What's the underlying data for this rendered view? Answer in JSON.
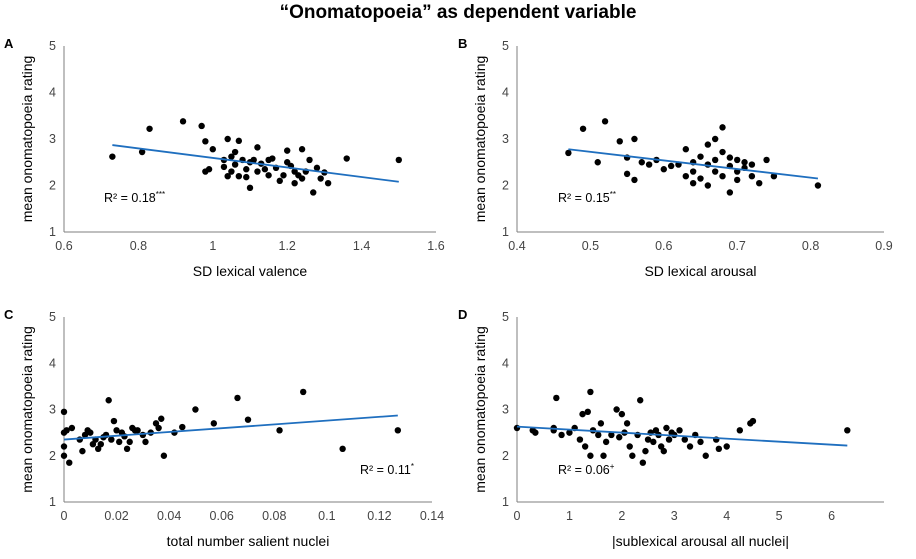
{
  "figure": {
    "title": "“Onomatopoeia” as dependent variable"
  },
  "colors": {
    "points": "#000000",
    "trendline": "#1f6fbf",
    "axis": "#7f7f7f"
  },
  "chart_data": [
    {
      "panel": "A",
      "type": "scatter",
      "xlabel": "SD lexical valence",
      "ylabel": "mean onomatopoeia rating",
      "xlim": [
        0.6,
        1.6
      ],
      "xticks": [
        "0.6",
        "0.8",
        "1",
        "1.2",
        "1.4",
        "1.6"
      ],
      "xtick_values": [
        0.6,
        0.8,
        1.0,
        1.2,
        1.4,
        1.6
      ],
      "ylim": [
        1,
        5
      ],
      "yticks": [
        "1",
        "2",
        "3",
        "4",
        "5"
      ],
      "ytick_values": [
        1,
        2,
        3,
        4,
        5
      ],
      "r2_text": "R² = 0.18",
      "r2_sig": "***",
      "trendline": {
        "x": [
          0.73,
          1.5
        ],
        "y": [
          2.87,
          2.08
        ]
      },
      "points": [
        [
          0.73,
          2.62
        ],
        [
          0.81,
          2.72
        ],
        [
          0.83,
          3.22
        ],
        [
          0.92,
          3.38
        ],
        [
          0.97,
          3.28
        ],
        [
          0.98,
          2.3
        ],
        [
          0.98,
          2.95
        ],
        [
          0.99,
          2.35
        ],
        [
          1.0,
          2.78
        ],
        [
          1.03,
          2.55
        ],
        [
          1.03,
          2.4
        ],
        [
          1.04,
          3.0
        ],
        [
          1.04,
          2.2
        ],
        [
          1.05,
          2.62
        ],
        [
          1.05,
          2.3
        ],
        [
          1.06,
          2.72
        ],
        [
          1.06,
          2.45
        ],
        [
          1.07,
          2.2
        ],
        [
          1.07,
          2.96
        ],
        [
          1.08,
          2.55
        ],
        [
          1.09,
          2.35
        ],
        [
          1.09,
          2.18
        ],
        [
          1.1,
          2.5
        ],
        [
          1.1,
          1.95
        ],
        [
          1.11,
          2.55
        ],
        [
          1.12,
          2.3
        ],
        [
          1.12,
          2.82
        ],
        [
          1.13,
          2.47
        ],
        [
          1.14,
          2.35
        ],
        [
          1.15,
          2.22
        ],
        [
          1.15,
          2.55
        ],
        [
          1.16,
          2.58
        ],
        [
          1.17,
          2.38
        ],
        [
          1.18,
          2.1
        ],
        [
          1.19,
          2.22
        ],
        [
          1.2,
          2.75
        ],
        [
          1.2,
          2.5
        ],
        [
          1.21,
          2.42
        ],
        [
          1.22,
          2.3
        ],
        [
          1.22,
          2.05
        ],
        [
          1.23,
          2.22
        ],
        [
          1.24,
          2.15
        ],
        [
          1.24,
          2.78
        ],
        [
          1.25,
          2.3
        ],
        [
          1.26,
          2.55
        ],
        [
          1.27,
          1.85
        ],
        [
          1.28,
          2.38
        ],
        [
          1.29,
          2.15
        ],
        [
          1.3,
          2.28
        ],
        [
          1.31,
          2.05
        ],
        [
          1.36,
          2.58
        ],
        [
          1.5,
          2.55
        ]
      ]
    },
    {
      "panel": "B",
      "type": "scatter",
      "xlabel": "SD lexical arousal",
      "ylabel": "mean onomatopoeia rating",
      "xlim": [
        0.4,
        0.9
      ],
      "xticks": [
        "0.4",
        "0.5",
        "0.6",
        "0.7",
        "0.8",
        "0.9"
      ],
      "xtick_values": [
        0.4,
        0.5,
        0.6,
        0.7,
        0.8,
        0.9
      ],
      "ylim": [
        1,
        5
      ],
      "yticks": [
        "1",
        "2",
        "3",
        "4",
        "5"
      ],
      "ytick_values": [
        1,
        2,
        3,
        4,
        5
      ],
      "r2_text": "R² = 0.15",
      "r2_sig": "**",
      "trendline": {
        "x": [
          0.47,
          0.81
        ],
        "y": [
          2.78,
          2.15
        ]
      },
      "points": [
        [
          0.47,
          2.7
        ],
        [
          0.49,
          3.22
        ],
        [
          0.51,
          2.5
        ],
        [
          0.52,
          3.38
        ],
        [
          0.54,
          2.95
        ],
        [
          0.55,
          2.25
        ],
        [
          0.55,
          2.6
        ],
        [
          0.56,
          2.12
        ],
        [
          0.56,
          3.0
        ],
        [
          0.57,
          2.5
        ],
        [
          0.58,
          2.45
        ],
        [
          0.59,
          2.55
        ],
        [
          0.6,
          2.35
        ],
        [
          0.61,
          2.42
        ],
        [
          0.62,
          2.45
        ],
        [
          0.63,
          2.78
        ],
        [
          0.63,
          2.2
        ],
        [
          0.64,
          2.5
        ],
        [
          0.64,
          2.3
        ],
        [
          0.64,
          2.05
        ],
        [
          0.65,
          2.62
        ],
        [
          0.65,
          2.15
        ],
        [
          0.66,
          2.45
        ],
        [
          0.66,
          2.0
        ],
        [
          0.66,
          2.88
        ],
        [
          0.67,
          2.55
        ],
        [
          0.67,
          2.3
        ],
        [
          0.67,
          3.0
        ],
        [
          0.68,
          2.72
        ],
        [
          0.68,
          2.2
        ],
        [
          0.68,
          3.25
        ],
        [
          0.69,
          2.42
        ],
        [
          0.69,
          1.85
        ],
        [
          0.69,
          2.6
        ],
        [
          0.7,
          2.55
        ],
        [
          0.7,
          2.3
        ],
        [
          0.7,
          2.12
        ],
        [
          0.71,
          2.5
        ],
        [
          0.71,
          2.38
        ],
        [
          0.72,
          2.2
        ],
        [
          0.72,
          2.45
        ],
        [
          0.73,
          2.05
        ],
        [
          0.74,
          2.55
        ],
        [
          0.75,
          2.2
        ],
        [
          0.81,
          2.0
        ]
      ]
    },
    {
      "panel": "C",
      "type": "scatter",
      "xlabel": "total number salient nuclei",
      "ylabel": "mean onomatopoeia rating",
      "xlim": [
        0,
        0.14
      ],
      "xticks": [
        "0",
        "0.02",
        "0.04",
        "0.06",
        "0.08",
        "0.1",
        "0.12",
        "0.14"
      ],
      "xtick_values": [
        0,
        0.02,
        0.04,
        0.06,
        0.08,
        0.1,
        0.12,
        0.14
      ],
      "ylim": [
        1,
        5
      ],
      "yticks": [
        "1",
        "2",
        "3",
        "4",
        "5"
      ],
      "ytick_values": [
        1,
        2,
        3,
        4,
        5
      ],
      "r2_text": "R² = 0.11",
      "r2_sig": "*",
      "trendline": {
        "x": [
          0,
          0.127
        ],
        "y": [
          2.35,
          2.87
        ]
      },
      "points": [
        [
          0,
          2.95
        ],
        [
          0,
          2.5
        ],
        [
          0,
          2.2
        ],
        [
          0,
          2.0
        ],
        [
          0.001,
          2.55
        ],
        [
          0.002,
          1.85
        ],
        [
          0.003,
          2.6
        ],
        [
          0.006,
          2.35
        ],
        [
          0.007,
          2.1
        ],
        [
          0.008,
          2.45
        ],
        [
          0.009,
          2.55
        ],
        [
          0.01,
          2.5
        ],
        [
          0.011,
          2.25
        ],
        [
          0.012,
          2.35
        ],
        [
          0.013,
          2.15
        ],
        [
          0.014,
          2.25
        ],
        [
          0.015,
          2.4
        ],
        [
          0.016,
          2.45
        ],
        [
          0.017,
          3.2
        ],
        [
          0.018,
          2.35
        ],
        [
          0.019,
          2.75
        ],
        [
          0.02,
          2.55
        ],
        [
          0.021,
          2.3
        ],
        [
          0.022,
          2.5
        ],
        [
          0.023,
          2.42
        ],
        [
          0.024,
          2.15
        ],
        [
          0.025,
          2.3
        ],
        [
          0.026,
          2.6
        ],
        [
          0.027,
          2.55
        ],
        [
          0.028,
          2.55
        ],
        [
          0.03,
          2.45
        ],
        [
          0.031,
          2.3
        ],
        [
          0.033,
          2.5
        ],
        [
          0.035,
          2.7
        ],
        [
          0.036,
          2.6
        ],
        [
          0.037,
          2.8
        ],
        [
          0.038,
          2.0
        ],
        [
          0.042,
          2.5
        ],
        [
          0.045,
          2.62
        ],
        [
          0.05,
          3.0
        ],
        [
          0.057,
          2.7
        ],
        [
          0.066,
          3.25
        ],
        [
          0.07,
          2.78
        ],
        [
          0.082,
          2.55
        ],
        [
          0.091,
          3.38
        ],
        [
          0.106,
          2.15
        ],
        [
          0.127,
          2.55
        ]
      ]
    },
    {
      "panel": "D",
      "type": "scatter",
      "xlabel": "|sublexical arousal all nuclei|",
      "ylabel": "mean onomatopoeia rating",
      "xlim": [
        0,
        7
      ],
      "xticks": [
        "0",
        "1",
        "2",
        "3",
        "4",
        "5",
        "6"
      ],
      "xtick_values": [
        0,
        1,
        2,
        3,
        4,
        5,
        6
      ],
      "ylim": [
        1,
        5
      ],
      "yticks": [
        "1",
        "2",
        "3",
        "4",
        "5"
      ],
      "ytick_values": [
        1,
        2,
        3,
        4,
        5
      ],
      "r2_text": "R² = 0.06",
      "r2_sig": "+",
      "trendline": {
        "x": [
          0,
          6.3
        ],
        "y": [
          2.63,
          2.22
        ]
      },
      "points": [
        [
          0,
          2.6
        ],
        [
          0.3,
          2.55
        ],
        [
          0.35,
          2.5
        ],
        [
          0.7,
          2.6
        ],
        [
          0.7,
          2.55
        ],
        [
          0.75,
          3.25
        ],
        [
          0.85,
          2.45
        ],
        [
          1.0,
          2.5
        ],
        [
          1.1,
          2.6
        ],
        [
          1.2,
          2.35
        ],
        [
          1.25,
          2.9
        ],
        [
          1.3,
          2.2
        ],
        [
          1.35,
          2.95
        ],
        [
          1.4,
          2.0
        ],
        [
          1.4,
          3.38
        ],
        [
          1.45,
          2.55
        ],
        [
          1.55,
          2.45
        ],
        [
          1.6,
          2.7
        ],
        [
          1.65,
          2.0
        ],
        [
          1.7,
          2.3
        ],
        [
          1.8,
          2.45
        ],
        [
          1.9,
          3.0
        ],
        [
          1.95,
          2.4
        ],
        [
          2.0,
          2.9
        ],
        [
          2.05,
          2.5
        ],
        [
          2.1,
          2.7
        ],
        [
          2.15,
          2.2
        ],
        [
          2.2,
          2.0
        ],
        [
          2.3,
          2.45
        ],
        [
          2.35,
          3.2
        ],
        [
          2.4,
          1.85
        ],
        [
          2.45,
          2.1
        ],
        [
          2.5,
          2.35
        ],
        [
          2.55,
          2.5
        ],
        [
          2.6,
          2.3
        ],
        [
          2.65,
          2.55
        ],
        [
          2.7,
          2.45
        ],
        [
          2.75,
          2.2
        ],
        [
          2.8,
          2.1
        ],
        [
          2.85,
          2.6
        ],
        [
          2.9,
          2.35
        ],
        [
          2.95,
          2.5
        ],
        [
          3.0,
          2.45
        ],
        [
          3.1,
          2.55
        ],
        [
          3.2,
          2.35
        ],
        [
          3.3,
          2.2
        ],
        [
          3.4,
          2.45
        ],
        [
          3.5,
          2.3
        ],
        [
          3.6,
          2.0
        ],
        [
          3.8,
          2.35
        ],
        [
          3.85,
          2.15
        ],
        [
          4.0,
          2.2
        ],
        [
          4.25,
          2.55
        ],
        [
          4.45,
          2.7
        ],
        [
          4.5,
          2.75
        ],
        [
          6.3,
          2.55
        ]
      ]
    }
  ]
}
